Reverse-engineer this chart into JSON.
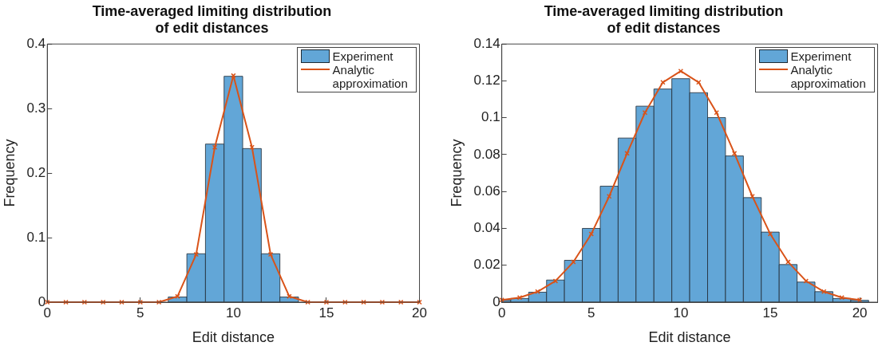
{
  "chart_data": [
    {
      "type": "histogram",
      "title": "Time-averaged limiting distribution of edit distances",
      "xlabel": "Edit distance",
      "ylabel": "Frequency",
      "xlim": [
        0,
        20
      ],
      "xticks": [
        0,
        5,
        10,
        15,
        20
      ],
      "ylim": [
        0,
        0.4
      ],
      "yticks": [
        0,
        0.1,
        0.2,
        0.3,
        0.4
      ],
      "grid": false,
      "legend": "top right",
      "marker": "cross",
      "series": [
        {
          "name": "Experiment",
          "color": "#62a6d7",
          "bins": [
            6.5,
            7.5,
            8.5,
            9.5,
            10.5,
            11.5,
            12.5,
            13.5
          ],
          "values": [
            0.008,
            0.075,
            0.245,
            0.35,
            0.238,
            0.075,
            0.008
          ]
        },
        {
          "type": "line",
          "name": "Analytic approximation",
          "color": "#d95319",
          "x": [
            0,
            1,
            2,
            3,
            4,
            5,
            6,
            7,
            8,
            9,
            10,
            11,
            12,
            13,
            14,
            15,
            16,
            17,
            18,
            19,
            20
          ],
          "values": [
            0,
            0,
            0,
            0,
            0,
            0,
            0,
            0.009,
            0.074,
            0.24,
            0.351,
            0.24,
            0.074,
            0.009,
            0,
            0,
            0,
            0,
            0,
            0,
            0
          ]
        }
      ]
    },
    {
      "type": "histogram",
      "title": "Time-averaged limiting distribution of edit distances",
      "xlabel": "Edit distance",
      "ylabel": "Frequency",
      "xlim": [
        0,
        21
      ],
      "xticks": [
        0,
        5,
        10,
        15,
        20
      ],
      "ylim": [
        0,
        0.14
      ],
      "yticks": [
        0,
        0.02,
        0.04,
        0.06,
        0.08,
        0.1,
        0.12,
        0.14
      ],
      "grid": false,
      "legend": "top right",
      "marker": "cross",
      "series": [
        {
          "name": "Experiment",
          "color": "#62a6d7",
          "bins": [
            0,
            0.5,
            1.5,
            2.5,
            3.5,
            4.5,
            5.5,
            6.5,
            7.5,
            8.5,
            9.5,
            10.5,
            11.5,
            12.5,
            13.5,
            14.5,
            15.5,
            16.5,
            17.5,
            18.5,
            19.5,
            20.5
          ],
          "values": [
            0.001,
            0.002,
            0.0054,
            0.012,
            0.0227,
            0.04,
            0.0629,
            0.089,
            0.1063,
            0.1156,
            0.1212,
            0.1136,
            0.1001,
            0.0793,
            0.0567,
            0.038,
            0.0204,
            0.0109,
            0.0057,
            0.002,
            0.001
          ]
        },
        {
          "type": "line",
          "name": "Analytic approximation",
          "color": "#d95319",
          "x": [
            0,
            1,
            2,
            3,
            4,
            5,
            6,
            7,
            8,
            9,
            10,
            11,
            12,
            13,
            14,
            15,
            16,
            17,
            18,
            19,
            20
          ],
          "values": [
            0.0012,
            0.0025,
            0.0057,
            0.0115,
            0.0218,
            0.037,
            0.0574,
            0.0807,
            0.1028,
            0.1192,
            0.1253,
            0.1192,
            0.1028,
            0.0807,
            0.0574,
            0.037,
            0.0218,
            0.0115,
            0.0057,
            0.0025,
            0.0012
          ]
        }
      ]
    }
  ]
}
